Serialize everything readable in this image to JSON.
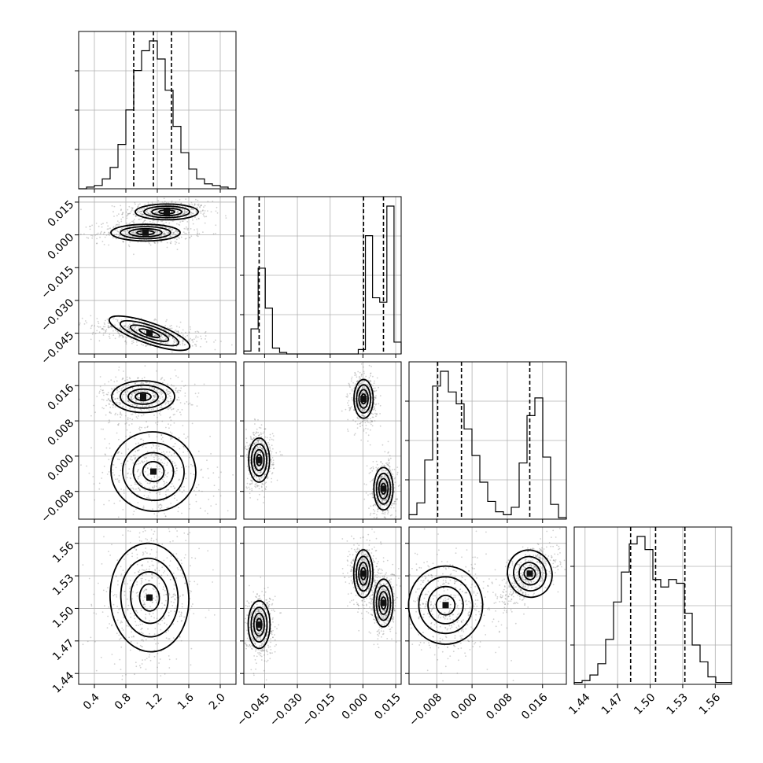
{
  "chart_data": {
    "type": "corner",
    "parameters": [
      {
        "range": [
          0.2,
          2.2
        ],
        "ticks": [
          0.4,
          0.8,
          1.2,
          1.6,
          2.0
        ],
        "labels": [
          "0.4",
          "0.8",
          "1.2",
          "1.6",
          "2.0"
        ],
        "quantiles": [
          0.9,
          1.15,
          1.38
        ]
      },
      {
        "range": [
          -0.0545,
          0.0175
        ],
        "ticks": [
          -0.045,
          -0.03,
          -0.015,
          0.0,
          0.015
        ],
        "labels": [
          "−0.045",
          "−0.030",
          "−0.015",
          "0.000",
          "0.015"
        ],
        "quantiles": [
          -0.0475,
          0.0003,
          0.0094
        ]
      },
      {
        "range": [
          -0.0143,
          0.0214
        ],
        "ticks": [
          -0.008,
          0.0,
          0.008,
          0.016
        ],
        "labels": [
          "−0.008",
          "0.000",
          "0.008",
          "0.016"
        ],
        "quantiles": [
          -0.0078,
          -0.0024,
          0.0131
        ]
      },
      {
        "range": [
          1.43,
          1.575
        ],
        "ticks": [
          1.44,
          1.47,
          1.5,
          1.53,
          1.56
        ],
        "labels": [
          "1.44",
          "1.47",
          "1.50",
          "1.53",
          "1.56"
        ],
        "quantiles": [
          1.482,
          1.505,
          1.532
        ]
      }
    ],
    "histograms": [
      [
        0,
        1,
        2,
        6,
        13,
        27,
        48,
        72,
        84,
        90,
        79,
        60,
        38,
        22,
        12,
        6,
        3,
        2,
        1,
        0
      ],
      [
        2,
        17,
        58,
        31,
        4,
        1,
        0,
        0,
        0,
        0,
        0,
        0,
        0,
        0,
        0,
        0,
        3,
        80,
        38,
        35,
        100,
        8
      ],
      [
        3,
        11,
        40,
        90,
        100,
        86,
        78,
        61,
        43,
        25,
        12,
        5,
        3,
        8,
        38,
        70,
        82,
        42,
        10,
        1
      ],
      [
        1,
        2,
        5,
        11,
        24,
        44,
        60,
        75,
        79,
        72,
        56,
        52,
        56,
        54,
        38,
        21,
        12,
        4,
        1,
        1
      ]
    ],
    "pairs": [
      {
        "x": 0,
        "y": 1,
        "modes": [
          {
            "cx": 1.32,
            "cy": 0.0105,
            "sx": 0.2,
            "sy": 0.0018,
            "rho": 0
          },
          {
            "cx": 1.05,
            "cy": 0.001,
            "sx": 0.22,
            "sy": 0.0019,
            "rho": 0
          },
          {
            "cx": 1.1,
            "cy": -0.045,
            "sx": 0.27,
            "sy": 0.0024,
            "rho": -0.55
          }
        ]
      },
      {
        "x": 0,
        "y": 2,
        "modes": [
          {
            "cx": 1.02,
            "cy": 0.0135,
            "sx": 0.2,
            "sy": 0.0018,
            "rho": 0
          },
          {
            "cx": 1.15,
            "cy": -0.0035,
            "sx": 0.27,
            "sy": 0.0045,
            "rho": -0.25
          }
        ]
      },
      {
        "x": 0,
        "y": 3,
        "modes": [
          {
            "cx": 1.1,
            "cy": 1.51,
            "sx": 0.25,
            "sy": 0.025,
            "rho": 0.1
          }
        ]
      },
      {
        "x": 1,
        "y": 2,
        "modes": [
          {
            "cx": 0.0003,
            "cy": 0.013,
            "sx": 0.0022,
            "sy": 0.0022,
            "rho": 0
          },
          {
            "cx": -0.0475,
            "cy": -0.0009,
            "sx": 0.0024,
            "sy": 0.0025,
            "rho": 0
          },
          {
            "cx": 0.0094,
            "cy": -0.0074,
            "sx": 0.0022,
            "sy": 0.0024,
            "rho": 0
          }
        ]
      },
      {
        "x": 1,
        "y": 3,
        "modes": [
          {
            "cx": 0.0002,
            "cy": 1.532,
            "sx": 0.0022,
            "sy": 0.011,
            "rho": 0
          },
          {
            "cx": -0.0475,
            "cy": 1.485,
            "sx": 0.0025,
            "sy": 0.011,
            "rho": 0
          },
          {
            "cx": 0.0094,
            "cy": 1.505,
            "sx": 0.0022,
            "sy": 0.011,
            "rho": 0
          }
        ]
      },
      {
        "x": 2,
        "y": 3,
        "modes": [
          {
            "cx": -0.006,
            "cy": 1.503,
            "sx": 0.0042,
            "sy": 0.018,
            "rho": 0
          },
          {
            "cx": 0.0131,
            "cy": 1.532,
            "sx": 0.0025,
            "sy": 0.011,
            "rho": 0.65
          }
        ]
      }
    ]
  }
}
